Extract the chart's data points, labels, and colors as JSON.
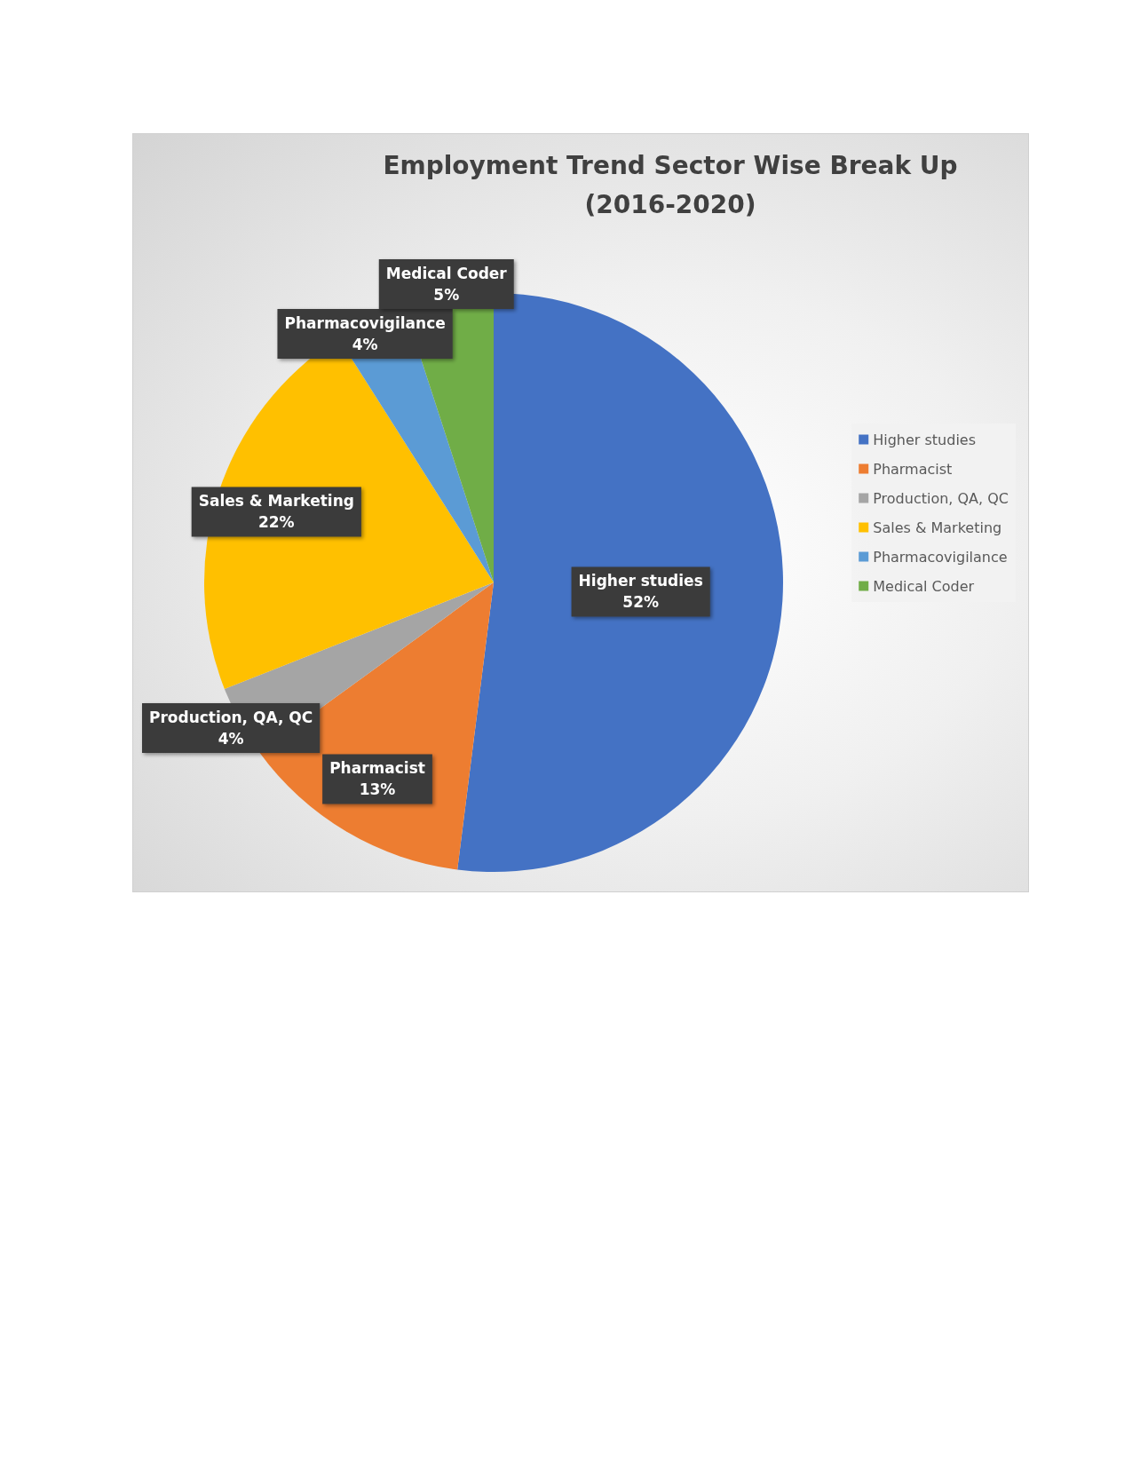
{
  "chart_data": {
    "type": "pie",
    "title": "Employment Trend Sector Wise Break Up\n(2016-2020)",
    "categories": [
      "Higher studies",
      "Pharmacist",
      "Production, QA, QC",
      "Sales & Marketing",
      "Pharmacovigilance",
      "Medical Coder"
    ],
    "values": [
      52,
      13,
      4,
      22,
      4,
      5
    ],
    "value_labels": [
      "52%",
      "13%",
      "4%",
      "22%",
      "4%",
      "5%"
    ],
    "colors": [
      "#4472c4",
      "#ed7d31",
      "#a5a5a5",
      "#ffc000",
      "#5b9bd5",
      "#70ad47"
    ],
    "legend": "right"
  }
}
